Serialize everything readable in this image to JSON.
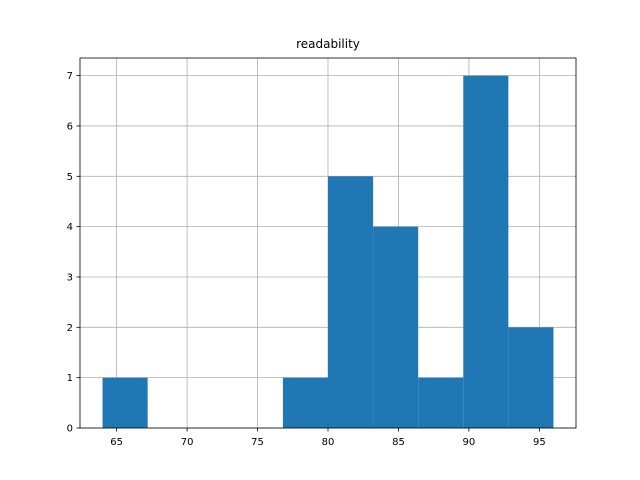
{
  "chart_data": {
    "type": "bar",
    "title": "readability",
    "xlabel": "",
    "ylabel": "",
    "bin_edges": [
      64.0,
      67.2,
      70.4,
      73.6,
      76.8,
      80.0,
      83.2,
      86.4,
      89.6,
      92.8,
      96.0
    ],
    "values": [
      1,
      0,
      0,
      0,
      1,
      5,
      4,
      1,
      7,
      2
    ],
    "xlim": [
      62.4,
      97.6
    ],
    "ylim": [
      0,
      7.35
    ],
    "xticks": [
      65,
      70,
      75,
      80,
      85,
      90,
      95
    ],
    "yticks": [
      0,
      1,
      2,
      3,
      4,
      5,
      6,
      7
    ],
    "grid": true,
    "bar_color": "#1f77b4",
    "grid_color": "#b0b0b0"
  }
}
